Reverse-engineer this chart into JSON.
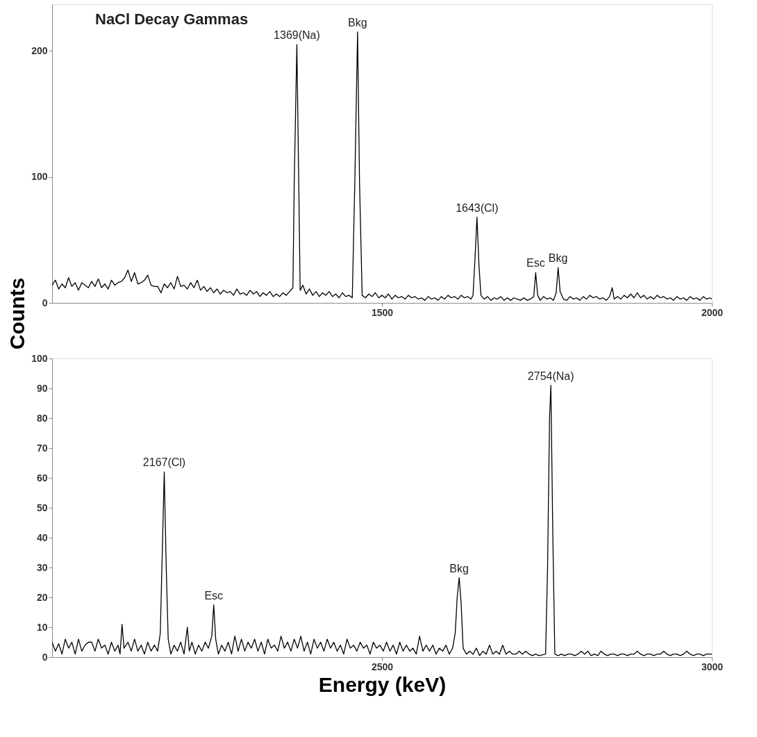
{
  "chart_data": [
    {
      "type": "line",
      "title": "NaCl Decay Gammas",
      "ylabel": "Counts",
      "x": [
        1000,
        1005,
        1010,
        1015,
        1020,
        1025,
        1030,
        1035,
        1040,
        1045,
        1050,
        1055,
        1060,
        1065,
        1070,
        1075,
        1080,
        1085,
        1090,
        1095,
        1100,
        1105,
        1110,
        1115,
        1120,
        1125,
        1130,
        1135,
        1140,
        1145,
        1150,
        1155,
        1160,
        1165,
        1170,
        1175,
        1180,
        1185,
        1190,
        1195,
        1200,
        1205,
        1210,
        1215,
        1220,
        1225,
        1230,
        1235,
        1240,
        1245,
        1250,
        1255,
        1260,
        1265,
        1270,
        1275,
        1280,
        1285,
        1290,
        1295,
        1300,
        1305,
        1310,
        1315,
        1320,
        1325,
        1330,
        1335,
        1340,
        1345,
        1350,
        1355,
        1360,
        1365,
        1367,
        1371,
        1374,
        1376,
        1380,
        1385,
        1390,
        1395,
        1400,
        1405,
        1410,
        1415,
        1420,
        1425,
        1430,
        1435,
        1440,
        1445,
        1450,
        1455,
        1459,
        1463,
        1466,
        1470,
        1475,
        1480,
        1485,
        1490,
        1495,
        1500,
        1505,
        1510,
        1515,
        1520,
        1525,
        1530,
        1535,
        1540,
        1545,
        1550,
        1555,
        1560,
        1565,
        1570,
        1575,
        1580,
        1585,
        1590,
        1595,
        1600,
        1605,
        1610,
        1615,
        1620,
        1625,
        1630,
        1635,
        1638,
        1641,
        1644,
        1647,
        1650,
        1655,
        1660,
        1665,
        1670,
        1675,
        1680,
        1685,
        1690,
        1695,
        1700,
        1705,
        1710,
        1715,
        1720,
        1725,
        1730,
        1733,
        1736,
        1740,
        1745,
        1750,
        1755,
        1760,
        1764,
        1767,
        1770,
        1775,
        1780,
        1785,
        1790,
        1795,
        1800,
        1805,
        1810,
        1815,
        1820,
        1825,
        1830,
        1835,
        1840,
        1845,
        1849,
        1852,
        1857,
        1862,
        1867,
        1872,
        1877,
        1882,
        1887,
        1892,
        1897,
        1902,
        1907,
        1912,
        1917,
        1922,
        1927,
        1932,
        1937,
        1942,
        1947,
        1952,
        1957,
        1962,
        1967,
        1972,
        1977,
        1982,
        1987,
        1992,
        1997,
        2000
      ],
      "series": [
        {
          "color": "#000000",
          "values": [
            14,
            18,
            11,
            15,
            12,
            20,
            13,
            16,
            10,
            16,
            14,
            12,
            17,
            13,
            19,
            12,
            15,
            11,
            18,
            14,
            16,
            17,
            20,
            26,
            17,
            24,
            15,
            16,
            18,
            22,
            14,
            13,
            13,
            8,
            15,
            12,
            16,
            11,
            21,
            13,
            14,
            11,
            16,
            12,
            18,
            10,
            13,
            9,
            12,
            8,
            11,
            7,
            10,
            8,
            9,
            6,
            11,
            7,
            8,
            6,
            10,
            7,
            9,
            5,
            8,
            6,
            9,
            5,
            7,
            5,
            8,
            6,
            9,
            12,
            95,
            205,
            90,
            10,
            14,
            7,
            11,
            6,
            9,
            5,
            8,
            6,
            9,
            5,
            7,
            4,
            8,
            5,
            6,
            4,
            100,
            215,
            95,
            6,
            4,
            7,
            5,
            8,
            4,
            6,
            4,
            7,
            3,
            6,
            4,
            5,
            3,
            6,
            4,
            5,
            3,
            4,
            2,
            5,
            3,
            4,
            2,
            5,
            3,
            6,
            4,
            5,
            3,
            6,
            4,
            5,
            3,
            6,
            35,
            68,
            30,
            6,
            3,
            5,
            2,
            4,
            3,
            5,
            2,
            4,
            2,
            4,
            3,
            2,
            4,
            2,
            3,
            5,
            24,
            6,
            2,
            5,
            3,
            4,
            2,
            8,
            28,
            9,
            3,
            2,
            5,
            3,
            4,
            2,
            5,
            3,
            6,
            4,
            5,
            3,
            4,
            2,
            5,
            12,
            3,
            5,
            3,
            6,
            4,
            7,
            4,
            8,
            4,
            6,
            3,
            5,
            3,
            6,
            4,
            5,
            3,
            4,
            2,
            5,
            3,
            4,
            2,
            5,
            3,
            4,
            2,
            5,
            3,
            4,
            3
          ]
        }
      ],
      "xlim": [
        1000,
        2000
      ],
      "ylim": [
        0,
        237
      ],
      "xticks": [
        1500,
        2000
      ],
      "yticks": [
        0,
        100,
        200
      ],
      "annotations": [
        {
          "text": "1369(Na)",
          "x": 1371,
          "y": 205
        },
        {
          "text": "Bkg",
          "x": 1463,
          "y": 215
        },
        {
          "text": "1643(Cl)",
          "x": 1644,
          "y": 68
        },
        {
          "text": "Esc",
          "x": 1733,
          "y": 24
        },
        {
          "text": "Bkg",
          "x": 1767,
          "y": 28
        }
      ]
    },
    {
      "type": "line",
      "xlabel": "Energy (keV)",
      "x": [
        2000,
        2005,
        2010,
        2015,
        2020,
        2025,
        2030,
        2035,
        2040,
        2045,
        2050,
        2055,
        2060,
        2065,
        2070,
        2075,
        2080,
        2085,
        2090,
        2095,
        2100,
        2103,
        2106,
        2109,
        2115,
        2120,
        2125,
        2130,
        2135,
        2140,
        2145,
        2150,
        2155,
        2160,
        2164,
        2167,
        2170,
        2173,
        2176,
        2180,
        2185,
        2190,
        2195,
        2200,
        2205,
        2208,
        2212,
        2217,
        2222,
        2227,
        2232,
        2237,
        2242,
        2245,
        2248,
        2252,
        2257,
        2262,
        2267,
        2272,
        2277,
        2282,
        2287,
        2292,
        2297,
        2302,
        2307,
        2312,
        2317,
        2322,
        2327,
        2332,
        2337,
        2342,
        2347,
        2352,
        2357,
        2362,
        2367,
        2372,
        2377,
        2382,
        2387,
        2392,
        2397,
        2402,
        2407,
        2412,
        2417,
        2422,
        2427,
        2432,
        2437,
        2442,
        2447,
        2452,
        2457,
        2462,
        2467,
        2472,
        2477,
        2482,
        2487,
        2492,
        2497,
        2502,
        2507,
        2512,
        2517,
        2522,
        2527,
        2532,
        2537,
        2542,
        2547,
        2552,
        2557,
        2562,
        2567,
        2572,
        2577,
        2582,
        2587,
        2592,
        2597,
        2602,
        2607,
        2611,
        2614,
        2617,
        2620,
        2623,
        2628,
        2633,
        2638,
        2643,
        2648,
        2653,
        2658,
        2663,
        2668,
        2673,
        2678,
        2683,
        2688,
        2693,
        2698,
        2703,
        2708,
        2713,
        2718,
        2723,
        2728,
        2733,
        2738,
        2748,
        2751,
        2754,
        2756,
        2759,
        2762,
        2767,
        2772,
        2777,
        2782,
        2787,
        2792,
        2797,
        2802,
        2807,
        2812,
        2817,
        2822,
        2827,
        2832,
        2837,
        2842,
        2847,
        2852,
        2857,
        2862,
        2867,
        2872,
        2877,
        2882,
        2887,
        2892,
        2897,
        2902,
        2907,
        2912,
        2917,
        2922,
        2927,
        2932,
        2937,
        2942,
        2947,
        2952,
        2957,
        2962,
        2967,
        2972,
        2977,
        2982,
        2987,
        2992,
        2997,
        3000
      ],
      "series": [
        {
          "color": "#000000",
          "values": [
            5,
            2,
            4.5,
            1,
            6,
            3,
            5,
            1,
            6,
            2,
            4,
            5,
            5,
            2,
            6,
            3,
            4,
            1,
            5,
            2,
            4,
            1,
            11,
            3,
            5,
            2,
            6,
            2,
            4,
            1,
            5,
            2,
            4,
            2,
            8,
            35,
            62,
            30,
            6,
            1,
            4,
            2,
            5,
            1,
            10,
            2,
            5,
            1,
            4,
            2,
            5,
            3,
            7,
            17.5,
            6,
            1,
            4,
            2,
            5,
            1,
            7,
            2,
            6,
            2,
            5,
            3,
            6,
            2,
            5,
            1,
            6,
            3,
            4,
            2,
            7,
            3,
            5,
            2,
            6,
            3,
            7,
            2,
            5,
            1,
            6,
            3,
            5,
            2,
            6,
            3,
            5,
            2,
            4,
            1,
            6,
            3,
            4,
            2,
            5,
            3,
            4,
            1,
            5,
            3,
            4,
            2,
            5,
            2,
            4,
            1,
            5,
            2,
            4,
            2,
            3,
            1,
            7,
            2,
            4,
            2,
            4,
            1,
            3,
            2,
            4,
            1,
            3,
            8,
            20,
            26.6,
            18,
            3,
            1,
            2,
            1,
            3,
            0.5,
            2,
            1,
            4,
            1,
            2,
            1,
            4,
            1,
            2,
            1,
            1,
            2,
            1,
            2,
            1,
            0.5,
            1,
            0.5,
            1,
            30,
            80,
            91,
            40,
            1,
            0.5,
            1,
            0.5,
            1,
            1,
            0.5,
            1,
            2,
            1,
            2,
            0.5,
            1,
            0.5,
            2,
            1,
            0.5,
            1,
            1,
            0.5,
            1,
            1,
            0.5,
            1,
            1,
            2,
            1,
            0.5,
            1,
            1,
            0.5,
            1,
            1,
            2,
            1,
            0.5,
            1,
            1,
            0.5,
            1,
            2,
            1,
            0.5,
            1,
            1,
            0.5,
            1,
            1,
            1
          ]
        }
      ],
      "xlim": [
        2000,
        3000
      ],
      "ylim": [
        0,
        100
      ],
      "xticks": [
        2500,
        3000
      ],
      "yticks": [
        0,
        10,
        20,
        30,
        40,
        50,
        60,
        70,
        80,
        90,
        100
      ],
      "annotations": [
        {
          "text": "2167(Cl)",
          "x": 2170,
          "y": 62
        },
        {
          "text": "Esc",
          "x": 2245,
          "y": 17.5
        },
        {
          "text": "Bkg",
          "x": 2617,
          "y": 26.6
        },
        {
          "text": "2754(Na)",
          "x": 2756,
          "y": 91
        }
      ]
    }
  ]
}
